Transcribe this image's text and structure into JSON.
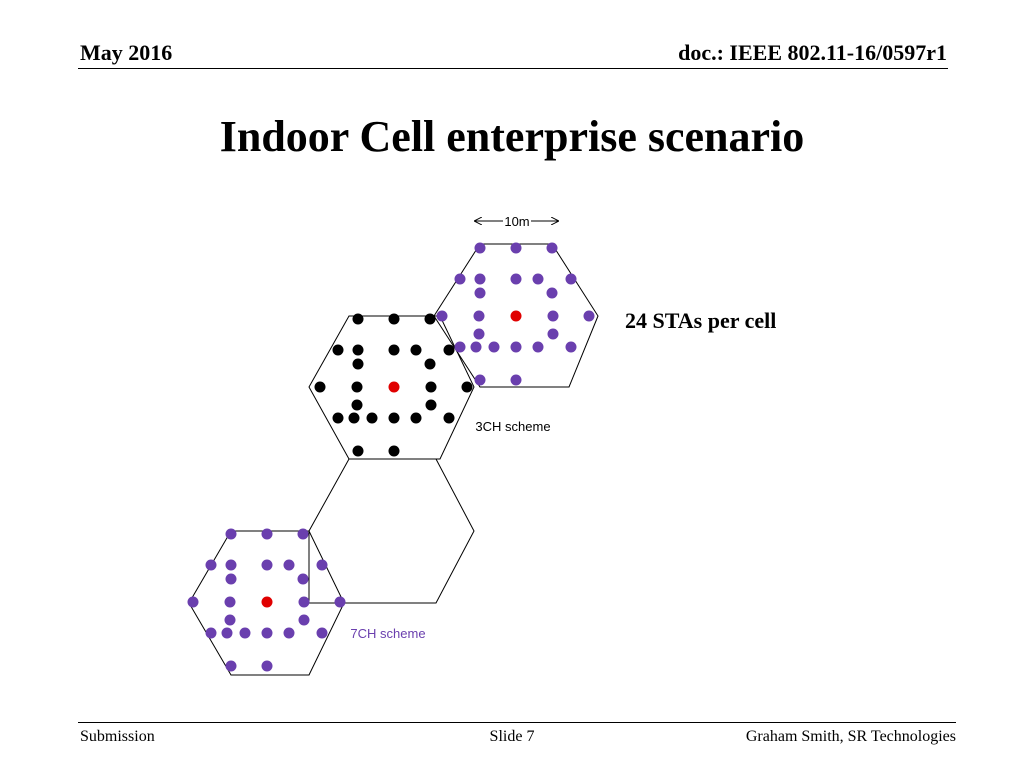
{
  "header": {
    "date": "May 2016",
    "doc_id": "doc.: IEEE 802.11-16/0597r1"
  },
  "title": "Indoor Cell enterprise scenario",
  "diagram": {
    "scale_label": "10m",
    "annotation": "24 STAs per cell",
    "label_3ch": "3CH scheme",
    "label_7ch": "7CH scheme",
    "colors": {
      "sta_purple": "#6a3fae",
      "sta_black": "#000000",
      "ap_red": "#e00000",
      "label_purple": "#6a3fae"
    }
  },
  "footer": {
    "left": "Submission",
    "center": "Slide 7",
    "right": "Graham Smith, SR Technologies"
  }
}
